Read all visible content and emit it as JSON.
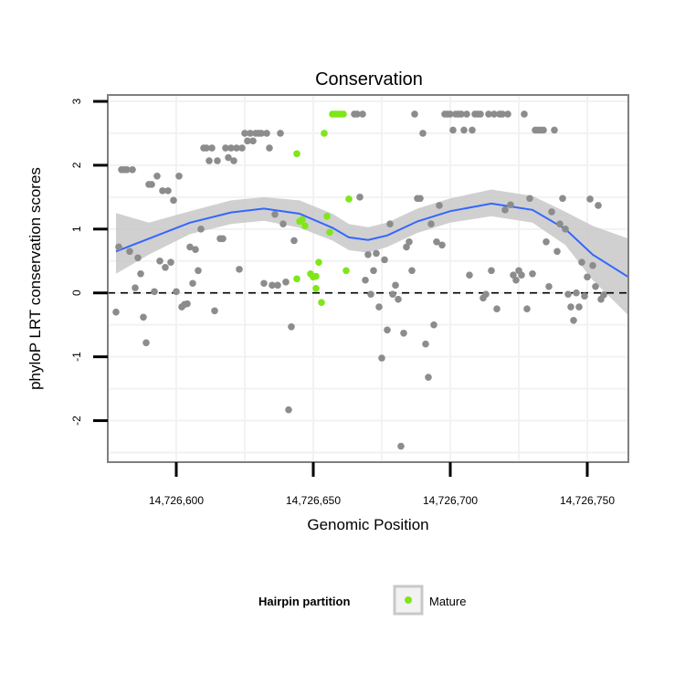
{
  "chart_data": {
    "type": "scatter",
    "title": "Conservation",
    "xlabel": "Genomic Position",
    "ylabel": "phyloP LRT conservation scores",
    "xlim": [
      14726575,
      14726765
    ],
    "ylim": [
      -2.65,
      3.1
    ],
    "x_ticks": [
      14726600,
      14726650,
      14726700,
      14726750
    ],
    "x_tick_labels": [
      "14,726,600",
      "14,726,650",
      "14,726,700",
      "14,726,750"
    ],
    "y_ticks": [
      -2,
      -1,
      0,
      1,
      2,
      3
    ],
    "y_tick_labels": [
      "-2",
      "-1",
      "0",
      "1",
      "2",
      "3"
    ],
    "reference_line": {
      "y": 0,
      "style": "dashed"
    },
    "grid": true,
    "colors": {
      "other": "#8c8c8c",
      "mature": "#7fe61a",
      "smooth": "#3366ff",
      "band": "#c8c8c8",
      "panel_border": "#7f7f7f"
    },
    "legend": {
      "title": "Hairpin partition",
      "placement": "bottom",
      "entries": [
        {
          "label": "Mature",
          "color": "#7fe61a"
        }
      ]
    },
    "series": [
      {
        "name": "Mature",
        "points": [
          [
            14726644,
            2.18
          ],
          [
            14726645,
            1.12
          ],
          [
            14726646,
            1.15
          ],
          [
            14726647,
            1.05
          ],
          [
            14726644,
            0.22
          ],
          [
            14726649,
            0.3
          ],
          [
            14726650,
            0.25
          ],
          [
            14726651,
            0.26
          ],
          [
            14726651,
            0.07
          ],
          [
            14726652,
            0.48
          ],
          [
            14726653,
            -0.15
          ],
          [
            14726654,
            2.5
          ],
          [
            14726655,
            1.2
          ],
          [
            14726656,
            0.95
          ],
          [
            14726657,
            2.8
          ],
          [
            14726658,
            2.8
          ],
          [
            14726659,
            2.8
          ],
          [
            14726660,
            2.8
          ],
          [
            14726661,
            2.8
          ],
          [
            14726662,
            0.35
          ],
          [
            14726663,
            1.47
          ]
        ]
      },
      {
        "name": "",
        "points": [
          [
            14726578,
            -0.3
          ],
          [
            14726579,
            0.72
          ],
          [
            14726580,
            1.93
          ],
          [
            14726581,
            1.93
          ],
          [
            14726582,
            1.93
          ],
          [
            14726583,
            0.65
          ],
          [
            14726584,
            1.93
          ],
          [
            14726585,
            0.08
          ],
          [
            14726586,
            0.55
          ],
          [
            14726587,
            0.3
          ],
          [
            14726588,
            -0.38
          ],
          [
            14726589,
            -0.78
          ],
          [
            14726590,
            1.7
          ],
          [
            14726591,
            1.7
          ],
          [
            14726592,
            0.02
          ],
          [
            14726593,
            1.83
          ],
          [
            14726594,
            0.5
          ],
          [
            14726595,
            1.6
          ],
          [
            14726596,
            0.4
          ],
          [
            14726597,
            1.6
          ],
          [
            14726598,
            0.48
          ],
          [
            14726599,
            1.45
          ],
          [
            14726600,
            0.02
          ],
          [
            14726601,
            1.83
          ],
          [
            14726602,
            -0.22
          ],
          [
            14726603,
            -0.18
          ],
          [
            14726604,
            -0.17
          ],
          [
            14726605,
            0.72
          ],
          [
            14726606,
            0.15
          ],
          [
            14726607,
            0.68
          ],
          [
            14726608,
            0.35
          ],
          [
            14726609,
            1.0
          ],
          [
            14726610,
            2.27
          ],
          [
            14726611,
            2.27
          ],
          [
            14726612,
            2.07
          ],
          [
            14726613,
            2.27
          ],
          [
            14726614,
            -0.28
          ],
          [
            14726615,
            2.07
          ],
          [
            14726616,
            0.85
          ],
          [
            14726617,
            0.85
          ],
          [
            14726618,
            2.27
          ],
          [
            14726619,
            2.12
          ],
          [
            14726620,
            2.27
          ],
          [
            14726621,
            2.07
          ],
          [
            14726622,
            2.27
          ],
          [
            14726623,
            0.37
          ],
          [
            14726624,
            2.27
          ],
          [
            14726625,
            2.5
          ],
          [
            14726626,
            2.38
          ],
          [
            14726627,
            2.5
          ],
          [
            14726628,
            2.38
          ],
          [
            14726629,
            2.5
          ],
          [
            14726630,
            2.5
          ],
          [
            14726631,
            2.5
          ],
          [
            14726632,
            0.15
          ],
          [
            14726633,
            2.5
          ],
          [
            14726634,
            2.27
          ],
          [
            14726635,
            0.12
          ],
          [
            14726636,
            1.23
          ],
          [
            14726637,
            0.12
          ],
          [
            14726638,
            2.5
          ],
          [
            14726639,
            1.08
          ],
          [
            14726640,
            0.17
          ],
          [
            14726641,
            -1.83
          ],
          [
            14726642,
            -0.53
          ],
          [
            14726643,
            0.82
          ],
          [
            14726665,
            2.8
          ],
          [
            14726666,
            2.8
          ],
          [
            14726667,
            1.5
          ],
          [
            14726668,
            2.8
          ],
          [
            14726669,
            0.2
          ],
          [
            14726670,
            0.6
          ],
          [
            14726671,
            -0.02
          ],
          [
            14726672,
            0.35
          ],
          [
            14726673,
            0.62
          ],
          [
            14726674,
            -0.22
          ],
          [
            14726675,
            -1.02
          ],
          [
            14726676,
            0.52
          ],
          [
            14726677,
            -0.58
          ],
          [
            14726678,
            1.08
          ],
          [
            14726679,
            -0.02
          ],
          [
            14726680,
            0.12
          ],
          [
            14726681,
            -0.1
          ],
          [
            14726682,
            -2.4
          ],
          [
            14726683,
            -0.63
          ],
          [
            14726684,
            0.72
          ],
          [
            14726685,
            0.8
          ],
          [
            14726686,
            0.35
          ],
          [
            14726687,
            2.8
          ],
          [
            14726688,
            1.48
          ],
          [
            14726689,
            1.48
          ],
          [
            14726690,
            2.5
          ],
          [
            14726691,
            -0.8
          ],
          [
            14726692,
            -1.32
          ],
          [
            14726693,
            1.08
          ],
          [
            14726694,
            -0.5
          ],
          [
            14726695,
            0.8
          ],
          [
            14726696,
            1.37
          ],
          [
            14726697,
            0.75
          ],
          [
            14726698,
            2.8
          ],
          [
            14726699,
            2.8
          ],
          [
            14726700,
            2.8
          ],
          [
            14726701,
            2.55
          ],
          [
            14726702,
            2.8
          ],
          [
            14726703,
            2.8
          ],
          [
            14726704,
            2.8
          ],
          [
            14726705,
            2.55
          ],
          [
            14726706,
            2.8
          ],
          [
            14726707,
            0.28
          ],
          [
            14726708,
            2.55
          ],
          [
            14726709,
            2.8
          ],
          [
            14726710,
            2.8
          ],
          [
            14726711,
            2.8
          ],
          [
            14726712,
            -0.08
          ],
          [
            14726713,
            -0.02
          ],
          [
            14726714,
            2.8
          ],
          [
            14726715,
            0.35
          ],
          [
            14726716,
            2.8
          ],
          [
            14726717,
            -0.25
          ],
          [
            14726718,
            2.8
          ],
          [
            14726719,
            2.8
          ],
          [
            14726720,
            1.3
          ],
          [
            14726721,
            2.8
          ],
          [
            14726722,
            1.38
          ],
          [
            14726723,
            0.28
          ],
          [
            14726724,
            0.2
          ],
          [
            14726725,
            0.35
          ],
          [
            14726726,
            0.28
          ],
          [
            14726727,
            2.8
          ],
          [
            14726728,
            -0.25
          ],
          [
            14726729,
            1.48
          ],
          [
            14726730,
            0.3
          ],
          [
            14726731,
            2.55
          ],
          [
            14726732,
            2.55
          ],
          [
            14726733,
            2.55
          ],
          [
            14726734,
            2.55
          ],
          [
            14726735,
            0.8
          ],
          [
            14726736,
            0.1
          ],
          [
            14726737,
            1.27
          ],
          [
            14726738,
            2.55
          ],
          [
            14726739,
            0.65
          ],
          [
            14726740,
            1.08
          ],
          [
            14726741,
            1.48
          ],
          [
            14726742,
            1.0
          ],
          [
            14726743,
            -0.02
          ],
          [
            14726744,
            -0.22
          ],
          [
            14726745,
            -0.43
          ],
          [
            14726746,
            0.0
          ],
          [
            14726747,
            -0.22
          ],
          [
            14726748,
            0.48
          ],
          [
            14726749,
            -0.05
          ],
          [
            14726750,
            0.25
          ],
          [
            14726751,
            1.47
          ],
          [
            14726752,
            0.43
          ],
          [
            14726753,
            0.1
          ],
          [
            14726754,
            1.37
          ],
          [
            14726755,
            -0.1
          ],
          [
            14726756,
            -0.03
          ]
        ]
      }
    ],
    "smooth": {
      "x": [
        14726578,
        14726590,
        14726605,
        14726620,
        14726632,
        14726645,
        14726657,
        14726663,
        14726670,
        14726677,
        14726688,
        14726700,
        14726715,
        14726730,
        14726742,
        14726752,
        14726765
      ],
      "y": [
        0.65,
        0.85,
        1.1,
        1.26,
        1.32,
        1.24,
        1.02,
        0.87,
        0.83,
        0.9,
        1.12,
        1.28,
        1.4,
        1.3,
        1.0,
        0.6,
        0.25
      ],
      "lower": [
        0.3,
        0.6,
        0.92,
        1.08,
        1.13,
        1.02,
        0.82,
        0.67,
        0.63,
        0.72,
        0.94,
        1.1,
        1.2,
        1.1,
        0.75,
        0.2,
        -0.35
      ],
      "upper": [
        1.25,
        1.1,
        1.28,
        1.45,
        1.5,
        1.45,
        1.24,
        1.08,
        1.03,
        1.1,
        1.32,
        1.48,
        1.62,
        1.52,
        1.27,
        1.05,
        0.85
      ]
    }
  }
}
